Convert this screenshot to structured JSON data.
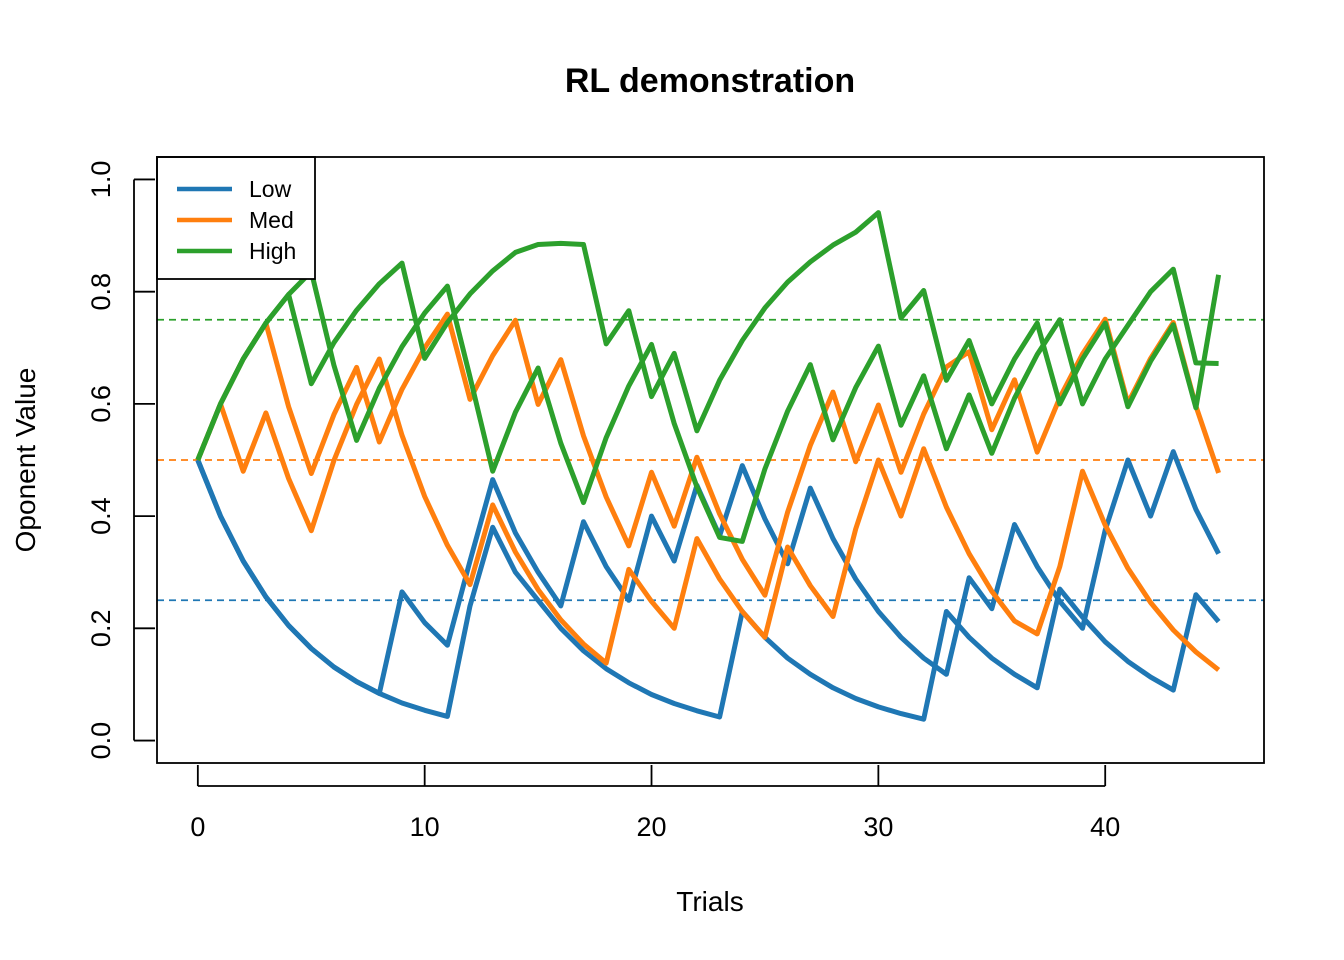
{
  "chart_data": {
    "type": "line",
    "title": "RL demonstration",
    "xlabel": "Trials",
    "ylabel": "Oponent Value",
    "xlim": [
      -1.8,
      47
    ],
    "ylim": [
      -0.04,
      1.04
    ],
    "xticks": [
      0,
      10,
      20,
      30,
      40
    ],
    "yticks": [
      0.0,
      0.2,
      0.4,
      0.6,
      0.8,
      1.0
    ],
    "ytick_labels": [
      "0.0",
      "0.2",
      "0.4",
      "0.6",
      "0.8",
      "1.0"
    ],
    "legend": {
      "position": "top-left",
      "entries": [
        {
          "label": "Low",
          "color": "#1f77b4"
        },
        {
          "label": "Med",
          "color": "#ff7f0e"
        },
        {
          "label": "High",
          "color": "#2ca02c"
        }
      ]
    },
    "reference_lines": [
      {
        "y": 0.25,
        "color": "#1f77b4"
      },
      {
        "y": 0.5,
        "color": "#ff7f0e"
      },
      {
        "y": 0.75,
        "color": "#2ca02c"
      }
    ],
    "series": [
      {
        "group": "Low",
        "color": "#1f77b4",
        "x": [
          0,
          1,
          2,
          3,
          4,
          5,
          6,
          7,
          8,
          9,
          10,
          11,
          12,
          13,
          14,
          15,
          16,
          17,
          18,
          19,
          20,
          21,
          22,
          23,
          24,
          25,
          26,
          27,
          28,
          29,
          30,
          31,
          32,
          33,
          34,
          35,
          36,
          37,
          38,
          39,
          40,
          41,
          42,
          43,
          44,
          45
        ],
        "y": [
          0.5,
          0.4,
          0.32,
          0.256,
          0.205,
          0.164,
          0.131,
          0.105,
          0.084,
          0.067,
          0.054,
          0.043,
          0.24,
          0.38,
          0.3,
          0.25,
          0.2,
          0.16,
          0.128,
          0.103,
          0.082,
          0.066,
          0.053,
          0.042,
          0.23,
          0.184,
          0.147,
          0.118,
          0.094,
          0.075,
          0.06,
          0.048,
          0.038,
          0.23,
          0.184,
          0.147,
          0.118,
          0.094,
          0.27,
          0.22,
          0.176,
          0.141,
          0.113,
          0.09,
          0.26,
          0.212
        ]
      },
      {
        "group": "Low",
        "color": "#1f77b4",
        "x": [
          0,
          1,
          2,
          3,
          4,
          5,
          6,
          7,
          8,
          9,
          10,
          11,
          12,
          13,
          14,
          15,
          16,
          17,
          18,
          19,
          20,
          21,
          22,
          23,
          24,
          25,
          26,
          27,
          28,
          29,
          30,
          31,
          32,
          33,
          34,
          35,
          36,
          37,
          38,
          39,
          40,
          41,
          42,
          43,
          44,
          45
        ],
        "y": [
          0.5,
          0.4,
          0.32,
          0.256,
          0.205,
          0.164,
          0.131,
          0.105,
          0.084,
          0.265,
          0.21,
          0.17,
          0.32,
          0.465,
          0.37,
          0.3,
          0.24,
          0.39,
          0.31,
          0.25,
          0.4,
          0.32,
          0.455,
          0.365,
          0.49,
          0.395,
          0.315,
          0.45,
          0.36,
          0.288,
          0.23,
          0.184,
          0.147,
          0.118,
          0.29,
          0.235,
          0.385,
          0.31,
          0.248,
          0.2,
          0.375,
          0.5,
          0.4,
          0.515,
          0.412,
          0.333
        ]
      },
      {
        "group": "Med",
        "color": "#ff7f0e",
        "x": [
          0,
          1,
          2,
          3,
          4,
          5,
          6,
          7,
          8,
          9,
          10,
          11,
          12,
          13,
          14,
          15,
          16,
          17,
          18,
          19,
          20,
          21,
          22,
          23,
          24,
          25,
          26,
          27,
          28,
          29,
          30,
          31,
          32,
          33,
          34,
          35,
          36,
          37,
          38,
          39,
          40,
          41,
          42,
          43,
          44,
          45
        ],
        "y": [
          0.5,
          0.6,
          0.48,
          0.584,
          0.467,
          0.374,
          0.499,
          0.599,
          0.68,
          0.544,
          0.435,
          0.348,
          0.278,
          0.42,
          0.336,
          0.269,
          0.215,
          0.172,
          0.138,
          0.305,
          0.248,
          0.2,
          0.36,
          0.288,
          0.23,
          0.184,
          0.345,
          0.276,
          0.221,
          0.377,
          0.5,
          0.4,
          0.52,
          0.416,
          0.333,
          0.266,
          0.213,
          0.19,
          0.31,
          0.48,
          0.384,
          0.307,
          0.246,
          0.197,
          0.158,
          0.126
        ]
      },
      {
        "group": "Med",
        "color": "#ff7f0e",
        "x": [
          0,
          1,
          2,
          3,
          4,
          5,
          6,
          7,
          8,
          9,
          10,
          11,
          12,
          13,
          14,
          15,
          16,
          17,
          18,
          19,
          20,
          21,
          22,
          23,
          24,
          25,
          26,
          27,
          28,
          29,
          30,
          31,
          32,
          33,
          34,
          35,
          36,
          37,
          38,
          39,
          40,
          41,
          42,
          43,
          44,
          45
        ],
        "y": [
          0.5,
          0.6,
          0.68,
          0.744,
          0.595,
          0.476,
          0.581,
          0.665,
          0.532,
          0.626,
          0.7,
          0.76,
          0.608,
          0.686,
          0.749,
          0.599,
          0.679,
          0.543,
          0.434,
          0.347,
          0.478,
          0.382,
          0.505,
          0.404,
          0.323,
          0.259,
          0.407,
          0.526,
          0.621,
          0.497,
          0.598,
          0.478,
          0.582,
          0.666,
          0.693,
          0.554,
          0.643,
          0.514,
          0.611,
          0.689,
          0.751,
          0.601,
          0.681,
          0.745,
          0.596,
          0.477
        ]
      },
      {
        "group": "High",
        "color": "#2ca02c",
        "x": [
          0,
          1,
          2,
          3,
          4,
          5,
          6,
          7,
          8,
          9,
          10,
          11,
          12,
          13,
          14,
          15,
          16,
          17,
          18,
          19,
          20,
          21,
          22,
          23,
          24,
          25,
          26,
          27,
          28,
          29,
          30,
          31,
          32,
          33,
          34,
          35,
          36,
          37,
          38,
          39,
          40,
          41,
          42,
          43,
          44,
          45
        ],
        "y": [
          0.5,
          0.6,
          0.68,
          0.744,
          0.795,
          0.836,
          0.669,
          0.535,
          0.628,
          0.702,
          0.762,
          0.81,
          0.648,
          0.48,
          0.585,
          0.664,
          0.53,
          0.424,
          0.54,
          0.632,
          0.706,
          0.565,
          0.452,
          0.362,
          0.355,
          0.484,
          0.587,
          0.67,
          0.536,
          0.629,
          0.703,
          0.562,
          0.65,
          0.52,
          0.616,
          0.512,
          0.61,
          0.688,
          0.75,
          0.6,
          0.68,
          0.74,
          0.8,
          0.84,
          0.673,
          0.672
        ]
      },
      {
        "group": "High",
        "color": "#2ca02c",
        "x": [
          0,
          1,
          2,
          3,
          4,
          5,
          6,
          7,
          8,
          9,
          10,
          11,
          12,
          13,
          14,
          15,
          16,
          17,
          18,
          19,
          20,
          21,
          22,
          23,
          24,
          25,
          26,
          27,
          28,
          29,
          30,
          31,
          32,
          33,
          34,
          35,
          36,
          37,
          38,
          39,
          40,
          41,
          42,
          43,
          44,
          45
        ],
        "y": [
          0.5,
          0.6,
          0.68,
          0.744,
          0.795,
          0.636,
          0.709,
          0.767,
          0.814,
          0.851,
          0.681,
          0.745,
          0.796,
          0.837,
          0.87,
          0.884,
          0.886,
          0.884,
          0.707,
          0.766,
          0.613,
          0.69,
          0.552,
          0.642,
          0.713,
          0.771,
          0.817,
          0.853,
          0.883,
          0.906,
          0.941,
          0.753,
          0.802,
          0.642,
          0.713,
          0.6,
          0.68,
          0.744,
          0.6,
          0.68,
          0.744,
          0.595,
          0.676,
          0.741,
          0.593,
          0.83
        ]
      }
    ]
  }
}
